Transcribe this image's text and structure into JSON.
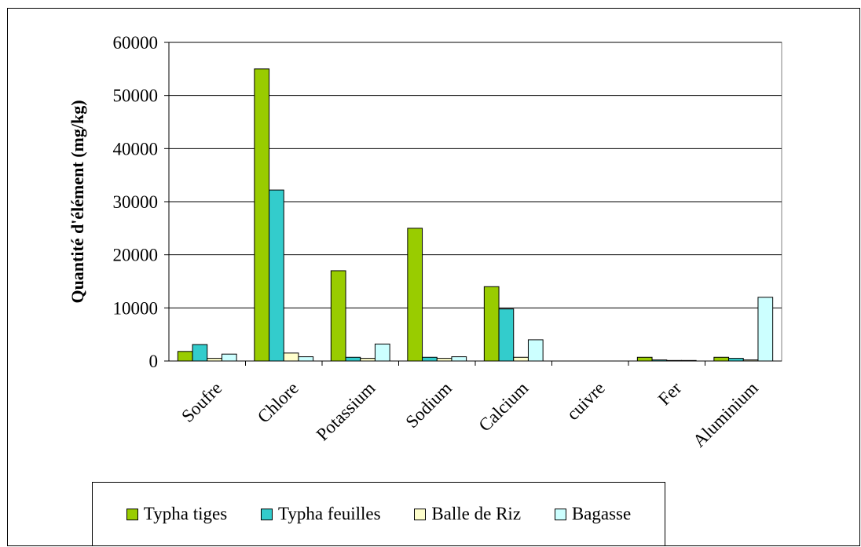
{
  "chart_data": {
    "type": "bar",
    "title": "",
    "xlabel": "",
    "ylabel": "Quantité d'élément (mg/kg)",
    "ylim": [
      0,
      60000
    ],
    "yticks": [
      0,
      10000,
      20000,
      30000,
      40000,
      50000,
      60000
    ],
    "ytick_labels": [
      "0",
      "10000",
      "20000",
      "30000",
      "40000",
      "50000",
      "60000"
    ],
    "categories": [
      "Soufre",
      "Chlore",
      "Potassium",
      "Sodium",
      "Calcium",
      "cuivre",
      "Fer",
      "Aluminium"
    ],
    "grid": true,
    "legend_position": "bottom",
    "series": [
      {
        "name": "Typha tiges",
        "color": "#99cc00",
        "values": [
          1800,
          55000,
          17000,
          25000,
          14000,
          0,
          700,
          700
        ]
      },
      {
        "name": "Typha feuilles",
        "color": "#33cccc",
        "values": [
          3100,
          32200,
          700,
          700,
          9800,
          0,
          200,
          500
        ]
      },
      {
        "name": "Balle de Riz",
        "color": "#ffffcc",
        "values": [
          500,
          1500,
          500,
          500,
          700,
          0,
          100,
          200
        ]
      },
      {
        "name": "Bagasse",
        "color": "#ccffff",
        "values": [
          1300,
          800,
          3200,
          800,
          4000,
          0,
          100,
          12000
        ]
      }
    ]
  }
}
